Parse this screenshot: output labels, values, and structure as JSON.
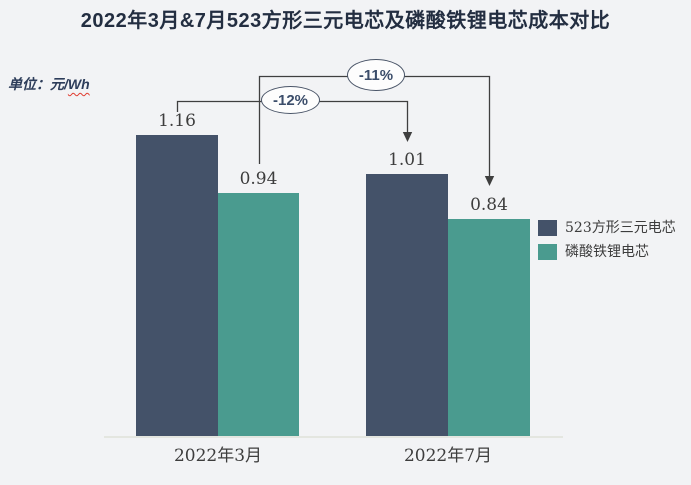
{
  "title": "2022年3月&7月523方形三元电芯及磷酸铁锂电芯成本对比",
  "unit": {
    "prefix": "单位：元/",
    "wavy": "Wh"
  },
  "chart_data": {
    "type": "bar",
    "title": "2022年3月&7月523方形三元电芯及磷酸铁锂电芯成本对比",
    "unit_label": "单位：元/Wh",
    "categories": [
      "2022年3月",
      "2022年7月"
    ],
    "series": [
      {
        "name": "523方形三元电芯",
        "color": "#445269",
        "values": [
          1.16,
          1.01
        ]
      },
      {
        "name": "磷酸铁锂电芯",
        "color": "#4a9b8f",
        "values": [
          0.94,
          0.84
        ]
      }
    ],
    "value_labels": [
      "1.16",
      "0.94",
      "1.01",
      "0.84"
    ],
    "annotations": [
      {
        "label": "-12%",
        "from_value": 1.16,
        "to_value": 1.01,
        "series": "523方形三元电芯"
      },
      {
        "label": "-11%",
        "from_value": 0.94,
        "to_value": 0.84,
        "series": "磷酸铁锂电芯"
      }
    ],
    "ylim": [
      0,
      1.16
    ],
    "grid": false,
    "axis_line_color": "#e4e6e0",
    "background_color": "#f2f3f5",
    "legend_position": "right"
  }
}
